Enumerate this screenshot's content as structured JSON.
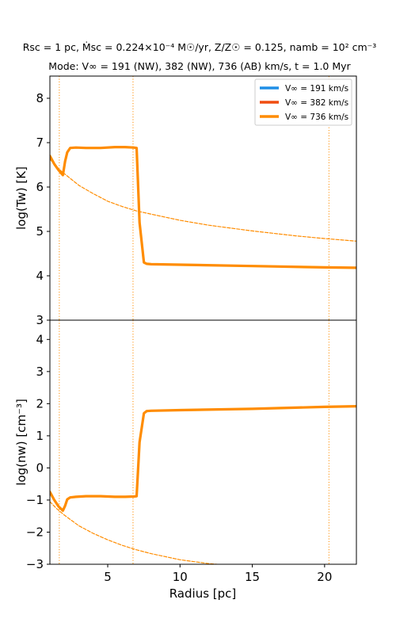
{
  "chart_data": {
    "type": "line",
    "title_line1": "Rsc = 1 pc, Ṁsc = 0.224×10⁻⁴ M☉/yr, Z/Z☉ = 0.125, namb = 10² cm⁻³",
    "title_line2": "Mode: V∞ = 191 (NW), 382 (NW), 736 (AB) km/s, t = 1.0 Myr",
    "xlabel": "Radius [pc]",
    "xlim": [
      1.0,
      22.2
    ],
    "xticks": [
      "5",
      "10",
      "15",
      "20"
    ],
    "legend_position": "upper-right (top panel)",
    "legend": [
      {
        "label": "V∞ = 191 km/s",
        "color": "#1f8ee6"
      },
      {
        "label": "V∞ = 382 km/s",
        "color": "#f04d10"
      },
      {
        "label": "V∞ = 736 km/s",
        "color": "#ff8c00"
      }
    ],
    "vlines": [
      1.65,
      6.75,
      20.3
    ],
    "panels": [
      {
        "ylabel": "log(Tw) [K]",
        "ylim": [
          3.0,
          8.5
        ],
        "yticks": [
          "3",
          "4",
          "5",
          "6",
          "7",
          "8"
        ],
        "series": [
          {
            "name": "V∞ = 736 km/s",
            "style": "solid",
            "color": "#ff8c00",
            "x": [
              1.0,
              1.3,
              1.6,
              1.9,
              2.05,
              2.2,
              2.4,
              2.8,
              3.5,
              4.5,
              5.5,
              6.2,
              6.8,
              7.0,
              7.2,
              7.5,
              7.7,
              8.0,
              10,
              15,
              20,
              22.2
            ],
            "y": [
              6.7,
              6.52,
              6.38,
              6.27,
              6.58,
              6.78,
              6.88,
              6.89,
              6.88,
              6.88,
              6.9,
              6.9,
              6.89,
              6.88,
              5.2,
              4.3,
              4.27,
              4.26,
              4.25,
              4.22,
              4.19,
              4.18
            ]
          },
          {
            "name": "",
            "style": "dashed",
            "color": "#ff8c00",
            "x": [
              1.0,
              1.5,
              2,
              3,
              4,
              5,
              6,
              7,
              8,
              10,
              12,
              15,
              18,
              20,
              22.2
            ],
            "y": [
              6.63,
              6.44,
              6.3,
              6.04,
              5.85,
              5.68,
              5.56,
              5.46,
              5.39,
              5.25,
              5.14,
              5.01,
              4.9,
              4.84,
              4.78
            ]
          }
        ]
      },
      {
        "ylabel": "log(nw) [cm⁻³]",
        "ylim": [
          -3.0,
          4.6
        ],
        "yticks": [
          "−3",
          "−2",
          "−1",
          "0",
          "1",
          "2",
          "3",
          "4"
        ],
        "series": [
          {
            "name": "V∞ = 736 km/s",
            "style": "solid",
            "color": "#ff8c00",
            "x": [
              1.0,
              1.3,
              1.6,
              1.9,
              2.05,
              2.2,
              2.4,
              2.8,
              3.5,
              4.5,
              5.5,
              6.2,
              6.8,
              7.0,
              7.2,
              7.5,
              7.7,
              8.0,
              10,
              15,
              20,
              22.2
            ],
            "y": [
              -0.75,
              -1.0,
              -1.2,
              -1.33,
              -1.18,
              -0.98,
              -0.92,
              -0.9,
              -0.88,
              -0.88,
              -0.9,
              -0.9,
              -0.89,
              -0.88,
              0.8,
              1.7,
              1.77,
              1.78,
              1.8,
              1.84,
              1.9,
              1.92
            ]
          },
          {
            "name": "",
            "style": "dashed",
            "color": "#ff8c00",
            "x": [
              1.0,
              1.5,
              2,
              3,
              4,
              5,
              6,
              7,
              8,
              10,
              12,
              13.5,
              15
            ],
            "y": [
              -1.05,
              -1.28,
              -1.47,
              -1.8,
              -2.04,
              -2.24,
              -2.41,
              -2.55,
              -2.67,
              -2.86,
              -2.98,
              -3.04,
              -3.1
            ]
          }
        ]
      }
    ]
  }
}
